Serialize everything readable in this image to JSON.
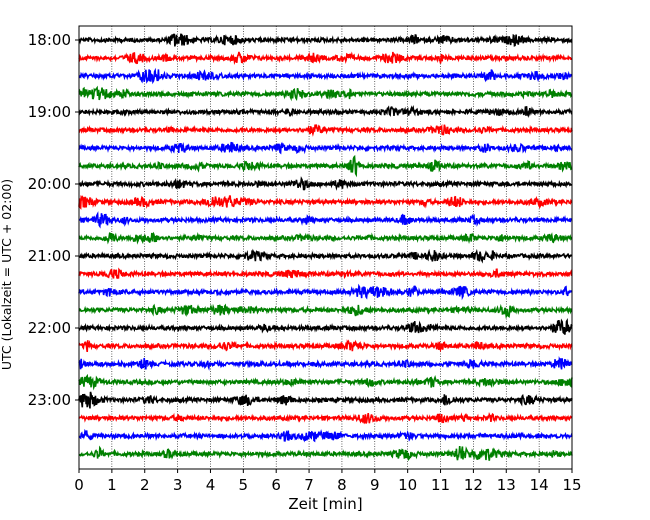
{
  "chart_data": {
    "type": "line",
    "title": "",
    "xlabel": "Zeit  [min]",
    "ylabel": "UTC (Lokalzeit = UTC + 02:00)",
    "xlim": [
      0,
      15
    ],
    "x_ticks": [
      "0",
      "1",
      "2",
      "3",
      "4",
      "5",
      "6",
      "7",
      "8",
      "9",
      "10",
      "11",
      "12",
      "13",
      "14",
      "15"
    ],
    "y_tick_labels": [
      "18:00",
      "19:00",
      "20:00",
      "21:00",
      "22:00",
      "23:00"
    ],
    "grid_x": true,
    "minutes_per_trace": 15,
    "trace_colors": [
      "#000000",
      "#ff0000",
      "#0000ff",
      "#008000"
    ],
    "series": [
      {
        "start": "18:00"
      },
      {
        "start": "18:15"
      },
      {
        "start": "18:30"
      },
      {
        "start": "18:45"
      },
      {
        "start": "19:00"
      },
      {
        "start": "19:15"
      },
      {
        "start": "19:30"
      },
      {
        "start": "19:45"
      },
      {
        "start": "20:00"
      },
      {
        "start": "20:15"
      },
      {
        "start": "20:30"
      },
      {
        "start": "20:45"
      },
      {
        "start": "21:00"
      },
      {
        "start": "21:15"
      },
      {
        "start": "21:30"
      },
      {
        "start": "21:45"
      },
      {
        "start": "22:00"
      },
      {
        "start": "22:15"
      },
      {
        "start": "22:30"
      },
      {
        "start": "22:45"
      },
      {
        "start": "23:00"
      },
      {
        "start": "23:15"
      },
      {
        "start": "23:30"
      },
      {
        "start": "23:45"
      }
    ]
  }
}
